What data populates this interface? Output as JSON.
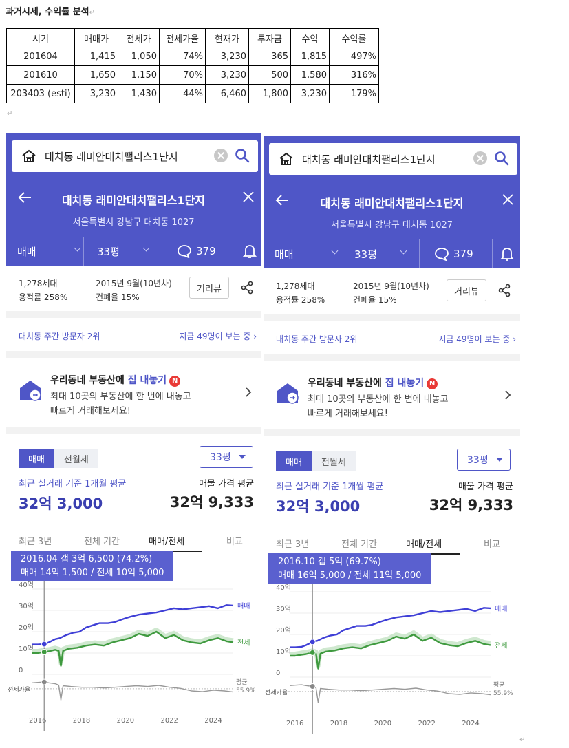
{
  "document": {
    "title": "과거시세, 수익률 분석",
    "para_mark": "↵",
    "table": {
      "headers": [
        "시기",
        "매매가",
        "전세가",
        "전세가율",
        "현재가",
        "투자금",
        "수익",
        "수익률"
      ],
      "rows": [
        [
          "201604",
          "1,415",
          "1,050",
          "74%",
          "3,230",
          "365",
          "1,815",
          "497%"
        ],
        [
          "201610",
          "1,650",
          "1,150",
          "70%",
          "3,230",
          "500",
          "1,580",
          "316%"
        ],
        [
          "203403 (esti)",
          "3,230",
          "1,430",
          "44%",
          "6,460",
          "1,800",
          "3,230",
          "179%"
        ]
      ]
    }
  },
  "colors": {
    "brand": "#4f56c7",
    "sale_line": "#3f3fd6",
    "jeonse_line": "#3f9a3f",
    "ratio_line": "#999999"
  },
  "panels": [
    {
      "search_text": "대치동 래미안대치팰리스1단지",
      "apt_name": "대치동 래미안대치팰리스1단지",
      "address": "서울특별시 강남구 대치동 1027",
      "tab_trade": "매매",
      "tab_size": "33평",
      "comments": "379",
      "households": "1,278세대",
      "far": "용적률 258%",
      "built": "2015년 9월(10년차)",
      "bcr": "건폐율 15%",
      "street_view": "거리뷰",
      "visit_rank": "대치동 주간 방문자 2위",
      "viewing_now": "지금 49명이 보는 중",
      "promo_head_pre": "우리동네 부동산에",
      "promo_head_em": "집 내놓기",
      "promo_badge": "N",
      "promo_desc1": "최대 10곳의 부동산에 한 번에 내놓고",
      "promo_desc2": "빠르게 거래해보세요!",
      "toggle_sale": "매매",
      "toggle_rent": "전월세",
      "size_select": "33평",
      "avg_label": "최근 실거래 기준 1개월 평균",
      "avg_value": "32억 3,000",
      "ask_label": "매물 가격 평균",
      "ask_value": "32억 9,333",
      "period_tabs": [
        "최근 3년",
        "전체 기간",
        "매매/전세",
        "비교"
      ],
      "tooltip_line1": "2016.04  갭 3억 6,500 (74.2%)",
      "tooltip_line2": "매매 14억 1,500 / 전세 10억 5,000",
      "cursor_date": 2016.29
    },
    {
      "search_text": "대치동 래미안대치팰리스1단지",
      "apt_name": "대치동 래미안대치팰리스1단지",
      "address": "서울특별시 강남구 대치동 1027",
      "tab_trade": "매매",
      "tab_size": "33평",
      "comments": "379",
      "households": "1,278세대",
      "far": "용적률 258%",
      "built": "2015년 9월(10년차)",
      "bcr": "건폐율 15%",
      "street_view": "거리뷰",
      "visit_rank": "대치동 주간 방문자 2위",
      "viewing_now": "지금 49명이 보는 중",
      "promo_head_pre": "우리동네 부동산에",
      "promo_head_em": "집 내놓기",
      "promo_badge": "N",
      "promo_desc1": "최대 10곳의 부동산에 한 번에 내놓고",
      "promo_desc2": "빠르게 거래해보세요!",
      "toggle_sale": "매매",
      "toggle_rent": "전월세",
      "size_select": "33평",
      "avg_label": "최근 실거래 기준 1개월 평균",
      "avg_value": "32억 3,000",
      "ask_label": "매물 가격 평균",
      "ask_value": "32억 9,333",
      "period_tabs": [
        "최근 3년",
        "전체 기간",
        "매매/전세",
        "비교"
      ],
      "tooltip_line1": "2016.10  갭 5억 (69.7%)",
      "tooltip_line2": "매매 16억 5,000 / 전세 11억 5,000",
      "cursor_date": 2016.79
    }
  ],
  "chart_data": {
    "type": "line",
    "y_ticks": [
      "40억",
      "30억",
      "20억",
      "10억",
      "0"
    ],
    "ylim": [
      0,
      40
    ],
    "xlim": [
      2015.75,
      2024.9
    ],
    "x_ticks": [
      "2016",
      "2018",
      "2020",
      "2022",
      "2024"
    ],
    "series": [
      {
        "name": "매매",
        "x": [
          2015.75,
          2016.0,
          2016.29,
          2016.5,
          2016.79,
          2017.0,
          2017.3,
          2017.6,
          2017.9,
          2018.2,
          2018.5,
          2018.8,
          2019.2,
          2019.5,
          2019.9,
          2020.2,
          2020.6,
          2021.0,
          2021.4,
          2021.8,
          2022.2,
          2022.6,
          2023.0,
          2023.4,
          2023.8,
          2024.2,
          2024.6,
          2024.9
        ],
        "values": [
          14.0,
          14.0,
          14.2,
          15.0,
          16.5,
          17.0,
          18.5,
          19.5,
          20.0,
          22.0,
          23.0,
          24.0,
          24.0,
          24.5,
          26.0,
          27.0,
          28.0,
          28.5,
          29.0,
          30.0,
          31.0,
          30.5,
          31.0,
          31.5,
          32.0,
          31.0,
          32.5,
          32.3
        ]
      },
      {
        "name": "전세",
        "x": [
          2015.75,
          2016.0,
          2016.29,
          2016.5,
          2016.79,
          2016.95,
          2017.05,
          2017.15,
          2017.4,
          2017.8,
          2018.2,
          2018.6,
          2019.0,
          2019.4,
          2019.8,
          2020.2,
          2020.6,
          2021.0,
          2021.4,
          2021.8,
          2022.2,
          2022.6,
          2023.0,
          2023.4,
          2023.8,
          2024.2,
          2024.6,
          2024.9
        ],
        "values": [
          10.0,
          10.0,
          10.5,
          10.8,
          11.5,
          11.0,
          4.0,
          11.0,
          12.0,
          12.5,
          13.5,
          14.0,
          13.5,
          15.0,
          16.0,
          17.0,
          19.0,
          18.0,
          20.0,
          17.0,
          18.5,
          16.0,
          15.0,
          14.5,
          16.0,
          17.0,
          15.5,
          15.0
        ]
      },
      {
        "name": "전세가율",
        "x": [
          2015.75,
          2016.0,
          2016.29,
          2016.5,
          2016.79,
          2016.95,
          2017.05,
          2017.15,
          2017.5,
          2018.0,
          2018.5,
          2019.0,
          2019.5,
          2020.0,
          2020.5,
          2021.0,
          2021.5,
          2022.0,
          2022.5,
          2023.0,
          2023.5,
          2024.0,
          2024.5,
          2024.9
        ],
        "values": [
          72,
          73,
          74.2,
          72,
          69.7,
          66,
          25,
          64,
          62,
          60,
          60,
          58,
          60,
          62,
          64,
          62,
          65,
          60,
          57,
          50,
          48,
          52,
          50,
          47
        ]
      }
    ],
    "ratio_avg_label": "평균",
    "ratio_avg_value": "55.9%",
    "ratio_label": "전세가율"
  }
}
